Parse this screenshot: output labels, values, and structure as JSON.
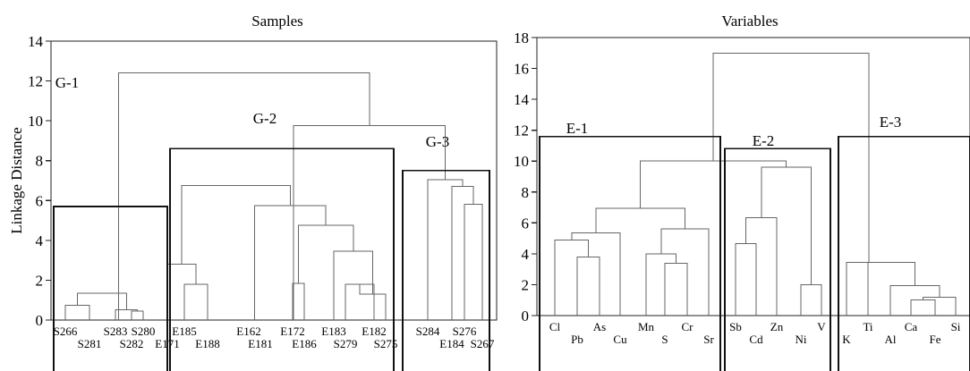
{
  "chart_data": [
    {
      "type": "dendrogram",
      "title": "Samples",
      "ylabel": "Linkage Distance",
      "xlabel": "",
      "ylim": [
        0,
        14
      ],
      "yticks": [
        "0",
        "2",
        "4",
        "6",
        "8",
        "10",
        "12",
        "14"
      ],
      "grid": false,
      "leaves": [
        "S266",
        "S281",
        "S283",
        "S282",
        "S280",
        "E171",
        "E185",
        "E188",
        "E162",
        "E181",
        "E172",
        "E186",
        "E183",
        "S279",
        "E182",
        "S275",
        "S284",
        "E184",
        "S276",
        "S267"
      ],
      "merges": [
        {
          "left": "S266",
          "right": "S281",
          "height": 0.75
        },
        {
          "left": "S282",
          "right": "S280",
          "height": 0.45
        },
        {
          "left": "S283",
          "right": "S282,S280",
          "height": 0.52
        },
        {
          "left": "S266,S281",
          "right": "S283,S282,S280",
          "height": 1.35
        },
        {
          "left": "E185",
          "right": "E188",
          "height": 1.8
        },
        {
          "left": "E185,E188",
          "right": "E171",
          "height": 2.8
        },
        {
          "left": "E172",
          "right": "E186",
          "height": 1.85
        },
        {
          "left": "S279",
          "right": "E182",
          "height": 1.8
        },
        {
          "left": "S279,E182",
          "right": "S275",
          "height": 1.3
        },
        {
          "left": "E183",
          "right": "S279,E182,S275",
          "height": 3.45
        },
        {
          "left": "E172,E186",
          "right": "E183,S279,E182,S275",
          "height": 4.75
        },
        {
          "left": "E162,E181",
          "right": "E172,E186,E183,S279,E182,S275",
          "height": 5.75
        },
        {
          "left": "E171,E185,E188",
          "right": "E162,E181,E172,E186,E183,S279,E182,S275",
          "height": 6.75
        },
        {
          "left": "S276",
          "right": "S267",
          "height": 5.8
        },
        {
          "left": "E184",
          "right": "S276,S267",
          "height": 6.7
        },
        {
          "left": "S284",
          "right": "E184,S276,S267",
          "height": 7.05
        },
        {
          "left": "G-2",
          "right": "G-3",
          "height": 9.75
        },
        {
          "left": "G-1",
          "right": "G-2,G-3",
          "height": 12.4
        }
      ],
      "groups": [
        {
          "label": "G-1",
          "height": 5.7
        },
        {
          "label": "G-2",
          "height": 8.6
        },
        {
          "label": "G-3",
          "height": 7.5
        }
      ]
    },
    {
      "type": "dendrogram",
      "title": "Variables",
      "ylabel": "",
      "xlabel": "",
      "ylim": [
        0,
        18
      ],
      "yticks": [
        "0",
        "2",
        "4",
        "6",
        "8",
        "10",
        "12",
        "14",
        "16",
        "18"
      ],
      "grid": false,
      "leaves": [
        "Cl",
        "Pb",
        "As",
        "Cu",
        "Mn",
        "S",
        "Cr",
        "Sr",
        "Sb",
        "Cd",
        "Zn",
        "Ni",
        "V",
        "K",
        "Ti",
        "Al",
        "Ca",
        "Fe",
        "Si"
      ],
      "merges": [
        {
          "left": "Pb",
          "right": "As",
          "height": 3.8
        },
        {
          "left": "Cl",
          "right": "Pb,As",
          "height": 4.9
        },
        {
          "left": "Cl,Pb,As",
          "right": "Cu",
          "height": 5.35
        },
        {
          "left": "S",
          "right": "Cr",
          "height": 3.4
        },
        {
          "left": "Mn",
          "right": "S,Cr",
          "height": 4.0
        },
        {
          "left": "Mn,S,Cr",
          "right": "Sr",
          "height": 5.6
        },
        {
          "left": "Cl,Pb,As,Cu",
          "right": "Mn,S,Cr,Sr",
          "height": 6.95
        },
        {
          "left": "Sb",
          "right": "Cd",
          "height": 4.65
        },
        {
          "left": "Sb,Cd",
          "right": "Zn",
          "height": 6.35
        },
        {
          "left": "Ni",
          "right": "V",
          "height": 2.0
        },
        {
          "left": "Sb,Cd,Zn",
          "right": "Ni,V",
          "height": 9.6
        },
        {
          "left": "E-1",
          "right": "E-2",
          "height": 10.0
        },
        {
          "left": "Ca",
          "right": "Fe",
          "height": 1.0
        },
        {
          "left": "Ca,Fe",
          "right": "Si",
          "height": 1.2
        },
        {
          "left": "Al",
          "right": "Ca,Fe,Si",
          "height": 1.95
        },
        {
          "left": "Ti",
          "right": "Al,Ca,Fe,Si",
          "height": 3.45
        },
        {
          "left": "K",
          "right": "Ti,Al,Ca,Fe,Si",
          "height": 3.45
        },
        {
          "left": "E-1,E-2",
          "right": "E-3",
          "height": 17.0
        }
      ],
      "groups": [
        {
          "label": "E-1",
          "height": 11.6
        },
        {
          "label": "E-2",
          "height": 10.8
        },
        {
          "label": "E-3",
          "height": 11.6
        }
      ]
    }
  ]
}
